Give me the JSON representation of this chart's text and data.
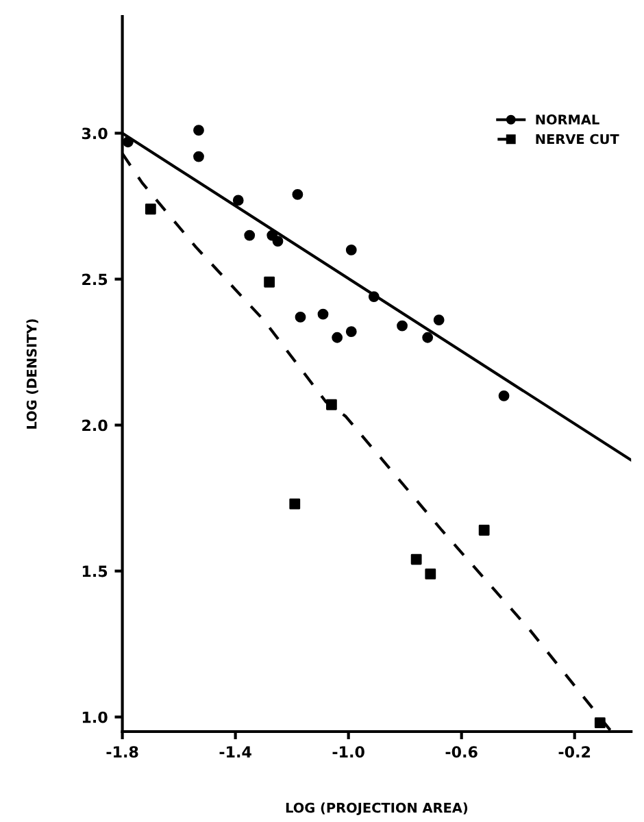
{
  "chart_data": {
    "type": "scatter",
    "xlabel": "LOG (PROJECTION AREA)",
    "ylabel": "LOG (DENSITY)",
    "xlim": [
      -1.8,
      0.0
    ],
    "ylim": [
      0.95,
      3.4
    ],
    "xticks": [
      {
        "value": -1.8,
        "label": "-1.8"
      },
      {
        "value": -1.4,
        "label": "-1.4"
      },
      {
        "value": -1.0,
        "label": "-1.0"
      },
      {
        "value": -0.6,
        "label": "-0.6"
      },
      {
        "value": -0.2,
        "label": "-0.2"
      }
    ],
    "yticks": [
      {
        "value": 1.0,
        "label": "1.0"
      },
      {
        "value": 1.5,
        "label": "1.5"
      },
      {
        "value": 2.0,
        "label": "2.0"
      },
      {
        "value": 2.5,
        "label": "2.5"
      },
      {
        "value": 3.0,
        "label": "3.0"
      }
    ],
    "grid": false,
    "legend": "top right",
    "series": [
      {
        "name": "NORMAL",
        "marker": "circle",
        "color": "#000000",
        "x": [
          -1.78,
          -1.53,
          -1.53,
          -1.39,
          -1.18,
          -1.35,
          -1.27,
          -1.25,
          -0.99,
          -1.17,
          -1.09,
          -1.04,
          -0.99,
          -0.91,
          -0.81,
          -0.68,
          -0.72,
          -0.45
        ],
        "values": [
          2.97,
          3.01,
          2.92,
          2.77,
          2.79,
          2.65,
          2.65,
          2.63,
          2.6,
          2.37,
          2.38,
          2.3,
          2.32,
          2.44,
          2.34,
          2.36,
          2.3,
          2.1
        ]
      },
      {
        "type": "line",
        "line_style": "solid",
        "color": "#000000",
        "x": [
          -1.8,
          0.0
        ],
        "values": [
          3.0,
          1.88
        ]
      },
      {
        "name": "NERVE CUT",
        "marker": "square",
        "color": "#000000",
        "x": [
          -1.7,
          -1.28,
          -1.06,
          -1.19,
          -0.76,
          -0.71,
          -0.52,
          -0.11
        ],
        "values": [
          2.74,
          2.49,
          2.07,
          1.73,
          1.54,
          1.49,
          1.64,
          0.98
        ]
      },
      {
        "type": "line",
        "line_style": "dashed",
        "color": "#000000",
        "x": [
          -1.8,
          -1.73,
          -1.54,
          -1.3,
          -1.08,
          -1.01,
          -0.67,
          -0.36,
          -0.07
        ],
        "values": [
          2.93,
          2.83,
          2.61,
          2.36,
          2.08,
          2.03,
          1.64,
          1.3,
          0.95
        ]
      }
    ]
  }
}
